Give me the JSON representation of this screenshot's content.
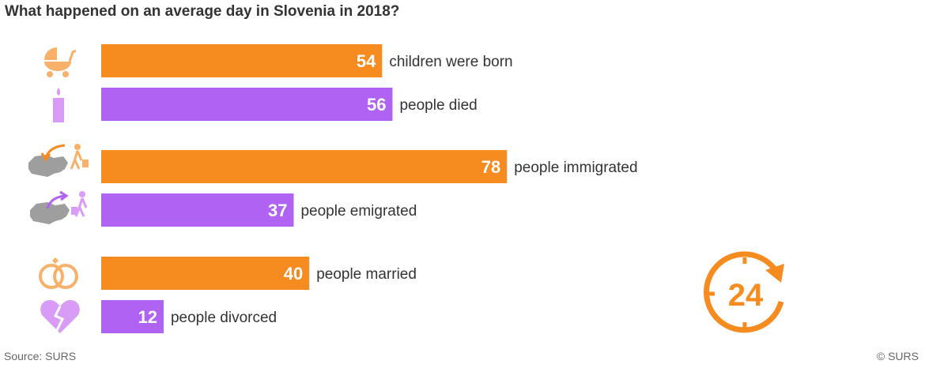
{
  "header": {
    "title": "What happened on an average day in Slovenia in 2018?"
  },
  "footer": {
    "source": "Source: SURS",
    "copyright": "© SURS"
  },
  "colors": {
    "orange": "#F68B1F",
    "purple": "#B063F3",
    "orange_icon": "#F8B16B",
    "purple_icon": "#D89CF7",
    "gray_icon": "#9E9E9E"
  },
  "chart_data": {
    "type": "bar",
    "orientation": "horizontal",
    "title": "What happened on an average day in Slovenia in 2018?",
    "categories": [
      "children were born",
      "people died",
      "people immigrated",
      "people emigrated",
      "people married",
      "people divorced"
    ],
    "values": [
      54,
      56,
      78,
      37,
      40,
      12
    ],
    "bar_colors": [
      "orange",
      "purple",
      "orange",
      "purple",
      "orange",
      "purple"
    ],
    "icons": [
      "baby-carriage-icon",
      "candle-icon",
      "immigration-icon",
      "emigration-icon",
      "wedding-rings-icon",
      "broken-heart-icon"
    ],
    "grid": false,
    "legend": "none"
  },
  "badge": {
    "label": "24",
    "icon": "24-hours-clock-icon"
  }
}
